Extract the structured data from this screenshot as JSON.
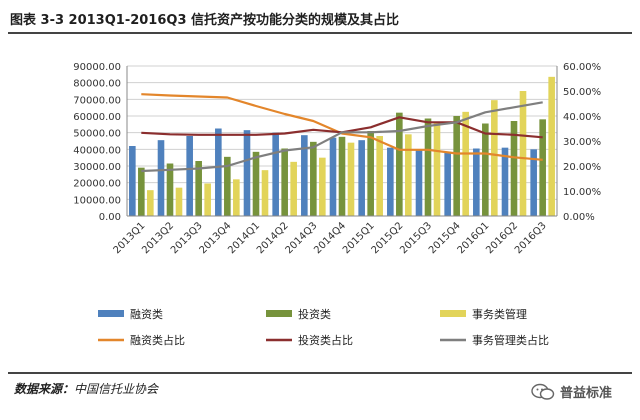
{
  "title": "图表 3-3 2013Q1-2016Q3 信托资产按功能分类的规模及其占比",
  "source_label": "数据来源：",
  "source_value": "中国信托业协会",
  "watermark": "普益标准",
  "colors": {
    "financing": "#4f81bd",
    "investment": "#77933c",
    "affairs": "#e2d45a",
    "financing_share": "#e3862b",
    "investment_share": "#8b2e2e",
    "affairs_share": "#7f7f7f",
    "grid": "#d0d0d0",
    "axis_text": "#333333"
  },
  "chart_data": {
    "type": "bar",
    "title": "",
    "xlabel": "",
    "ylabel": "",
    "ylim": [
      0,
      90000
    ],
    "y2lim": [
      0,
      60
    ],
    "grid": true,
    "legend_position": "bottom",
    "categories": [
      "2013Q1",
      "2013Q2",
      "2013Q3",
      "2013Q4",
      "2014Q1",
      "2014Q2",
      "2014Q3",
      "2014Q4",
      "2015Q1",
      "2015Q2",
      "2015Q3",
      "2015Q4",
      "2016Q1",
      "2016Q2",
      "2016Q3"
    ],
    "y_ticks": [
      "0.00",
      "10000.00",
      "20000.00",
      "30000.00",
      "40000.00",
      "50000.00",
      "60000.00",
      "70000.00",
      "80000.00",
      "90000.00"
    ],
    "y2_ticks": [
      "0.00%",
      "10.00%",
      "20.00%",
      "30.00%",
      "40.00%",
      "50.00%",
      "60.00%"
    ],
    "series": [
      {
        "name": "融资类",
        "kind": "bar",
        "axis": "left",
        "color_key": "financing",
        "values": [
          42000,
          45500,
          48000,
          52500,
          51500,
          50000,
          48500,
          47000,
          45500,
          41000,
          39500,
          38500,
          40500,
          41000,
          40000
        ]
      },
      {
        "name": "投资类",
        "kind": "bar",
        "axis": "left",
        "color_key": "investment",
        "values": [
          29000,
          31500,
          33000,
          35500,
          38500,
          40500,
          44500,
          47500,
          51000,
          62000,
          58500,
          60000,
          55500,
          57000,
          58000
        ]
      },
      {
        "name": "事务类管理",
        "kind": "bar",
        "axis": "left",
        "color_key": "affairs",
        "values": [
          15500,
          17000,
          19500,
          22000,
          27500,
          32500,
          35000,
          44000,
          48000,
          49000,
          56000,
          62500,
          69500,
          75000,
          83500
        ]
      },
      {
        "name": "融资类占比",
        "kind": "line",
        "axis": "right",
        "color_key": "financing_share",
        "values": [
          48.7,
          48.2,
          47.8,
          47.4,
          44.0,
          40.8,
          38.0,
          33.0,
          31.5,
          26.5,
          26.5,
          25.0,
          25.0,
          23.5,
          22.5
        ]
      },
      {
        "name": "投资类占比",
        "kind": "line",
        "axis": "right",
        "color_key": "investment_share",
        "values": [
          33.3,
          32.7,
          32.5,
          32.5,
          32.5,
          33.0,
          34.5,
          33.5,
          35.5,
          39.5,
          37.5,
          37.5,
          33.0,
          32.5,
          31.5
        ]
      },
      {
        "name": "事务管理类占比",
        "kind": "line",
        "axis": "right",
        "color_key": "affairs_share",
        "values": [
          18.0,
          18.5,
          19.0,
          20.0,
          23.5,
          26.2,
          27.5,
          33.5,
          33.5,
          34.0,
          36.0,
          37.5,
          41.5,
          43.5,
          45.5
        ]
      }
    ]
  }
}
